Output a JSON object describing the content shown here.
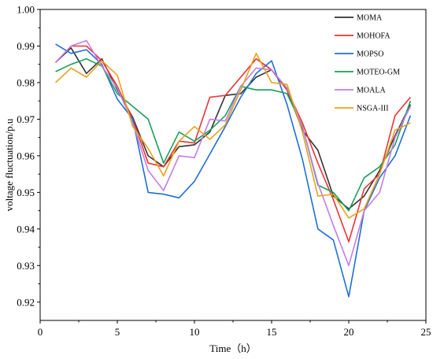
{
  "chart_data": {
    "type": "line",
    "title": "",
    "xlabel": "Time（h）",
    "ylabel": "voltage fluctuation/p.u",
    "xlim": [
      0,
      25
    ],
    "ylim": [
      0.915,
      1.0
    ],
    "xticks": [
      0,
      5,
      10,
      15,
      20,
      25
    ],
    "yticks": [
      0.92,
      0.93,
      0.94,
      0.95,
      0.96,
      0.97,
      0.98,
      0.99,
      1.0
    ],
    "ytick_labels": [
      "0.92",
      "0.93",
      "0.94",
      "0.95",
      "0.96",
      "0.97",
      "0.98",
      "0.99",
      "1.00"
    ],
    "grid": false,
    "legend_position": "top-right",
    "x": [
      1,
      2,
      3,
      4,
      5,
      6,
      7,
      8,
      9,
      10,
      11,
      12,
      13,
      14,
      15,
      16,
      17,
      18,
      19,
      20,
      21,
      22,
      23,
      24
    ],
    "series": [
      {
        "name": "MOMA",
        "color": "#333333",
        "values": [
          0.9855,
          0.9895,
          0.9825,
          0.9865,
          0.978,
          0.9705,
          0.96,
          0.957,
          0.9625,
          0.963,
          0.9665,
          0.9765,
          0.977,
          0.9815,
          0.9835,
          0.978,
          0.967,
          0.9615,
          0.949,
          0.9455,
          0.949,
          0.956,
          0.9655,
          0.974
        ]
      },
      {
        "name": "MOHOFA",
        "color": "#ee3333",
        "values": [
          0.9855,
          0.99,
          0.99,
          0.986,
          0.979,
          0.97,
          0.958,
          0.957,
          0.964,
          0.9635,
          0.976,
          0.9765,
          0.9815,
          0.9865,
          0.9835,
          0.978,
          0.969,
          0.958,
          0.948,
          0.9365,
          0.951,
          0.955,
          0.971,
          0.976
        ]
      },
      {
        "name": "MOPSO",
        "color": "#1f6fd6",
        "values": [
          0.9905,
          0.988,
          0.989,
          0.985,
          0.9755,
          0.97,
          0.95,
          0.9495,
          0.9485,
          0.953,
          0.9605,
          0.968,
          0.976,
          0.9825,
          0.986,
          0.974,
          0.959,
          0.94,
          0.937,
          0.9215,
          0.945,
          0.954,
          0.96,
          0.971
        ]
      },
      {
        "name": "MOTEO-GM",
        "color": "#18a05a",
        "values": [
          0.983,
          0.985,
          0.9865,
          0.9845,
          0.977,
          0.9735,
          0.97,
          0.958,
          0.9665,
          0.964,
          0.967,
          0.971,
          0.979,
          0.978,
          0.978,
          0.977,
          0.968,
          0.952,
          0.95,
          0.945,
          0.954,
          0.957,
          0.963,
          0.975
        ]
      },
      {
        "name": "MOALA",
        "color": "#c37ee6",
        "values": [
          0.9855,
          0.99,
          0.9915,
          0.9845,
          0.9785,
          0.969,
          0.956,
          0.9505,
          0.96,
          0.9595,
          0.97,
          0.9695,
          0.979,
          0.984,
          0.9835,
          0.9785,
          0.968,
          0.9525,
          0.941,
          0.93,
          0.945,
          0.95,
          0.965,
          0.9735
        ]
      },
      {
        "name": "NSGA-III",
        "color": "#e8a21c",
        "values": [
          0.98,
          0.984,
          0.9815,
          0.986,
          0.982,
          0.968,
          0.962,
          0.9545,
          0.964,
          0.968,
          0.9645,
          0.9685,
          0.978,
          0.988,
          0.98,
          0.9795,
          0.9665,
          0.949,
          0.9495,
          0.943,
          0.9455,
          0.955,
          0.967,
          0.969
        ]
      }
    ]
  }
}
